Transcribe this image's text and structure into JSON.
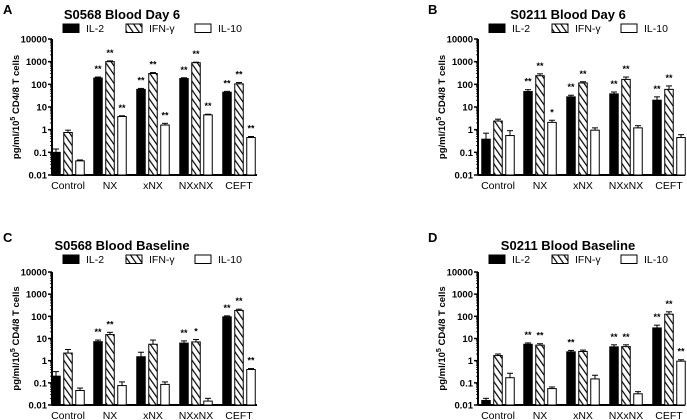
{
  "chart_data": [
    {
      "type": "bar",
      "panel_letter": "A",
      "title": "S0568 Blood Day 6",
      "ylabel": {
        "base": "pg/ml/10",
        "sup": "5",
        "rest": " CD4/8 T cells"
      },
      "yscale": "log",
      "ylim": [
        0.01,
        10000
      ],
      "yticks": [
        "0.01",
        "0.1",
        "1",
        "10",
        "100",
        "1000",
        "10000"
      ],
      "categories": [
        "Control",
        "NX",
        "xNX",
        "NXxNX",
        "CEFT"
      ],
      "series": [
        {
          "name": "IL-2",
          "fill": "solid",
          "values": [
            0.1,
            190,
            60,
            180,
            45
          ],
          "err_upper": [
            0.14,
            210,
            66,
            195,
            49
          ],
          "sig": [
            "",
            "**",
            "**",
            "**",
            "**"
          ]
        },
        {
          "name": "IFN-γ",
          "fill": "hatched",
          "values": [
            0.75,
            1000,
            300,
            900,
            105
          ],
          "err_upper": [
            0.95,
            1080,
            330,
            950,
            120
          ],
          "sig": [
            "",
            "**",
            "**",
            "**",
            "**"
          ]
        },
        {
          "name": "IL-10",
          "fill": "open",
          "values": [
            0.042,
            3.8,
            1.6,
            4.5,
            0.45
          ],
          "err_upper": [
            0.046,
            4.1,
            1.9,
            4.8,
            0.5
          ],
          "sig": [
            "",
            "**",
            "**",
            "**",
            "**"
          ]
        }
      ],
      "legend": "top"
    },
    {
      "type": "bar",
      "panel_letter": "B",
      "title": "S0211 Blood Day 6",
      "ylabel": {
        "base": "pg/ml/10",
        "sup": "5",
        "rest": " CD4/8 T cells"
      },
      "yscale": "log",
      "ylim": [
        0.01,
        10000
      ],
      "yticks": [
        "0.01",
        "0.1",
        "1",
        "10",
        "100",
        "1000",
        "10000"
      ],
      "categories": [
        "Control",
        "NX",
        "xNX",
        "NXxNX",
        "CEFT"
      ],
      "series": [
        {
          "name": "IL-2",
          "fill": "solid",
          "values": [
            0.38,
            48,
            28,
            38,
            20
          ],
          "err_upper": [
            0.7,
            58,
            33,
            46,
            28
          ],
          "sig": [
            "",
            "**",
            "**",
            "**",
            "**"
          ]
        },
        {
          "name": "IFN-γ",
          "fill": "hatched",
          "values": [
            2.4,
            240,
            115,
            165,
            60
          ],
          "err_upper": [
            2.9,
            290,
            130,
            210,
            85
          ],
          "sig": [
            "",
            "**",
            "**",
            "**",
            "**"
          ]
        },
        {
          "name": "IL-10",
          "fill": "open",
          "values": [
            0.55,
            2.1,
            0.95,
            1.2,
            0.45
          ],
          "err_upper": [
            0.9,
            2.6,
            1.2,
            1.5,
            0.6
          ],
          "sig": [
            "",
            "*",
            "",
            "",
            ""
          ]
        }
      ],
      "legend": "top"
    },
    {
      "type": "bar",
      "panel_letter": "C",
      "title": "S0568 Blood Baseline",
      "ylabel": {
        "base": "pg/ml/10",
        "sup": "5",
        "rest": " CD4/8 T cells"
      },
      "yscale": "log",
      "ylim": [
        0.01,
        10000
      ],
      "yticks": [
        "0.01",
        "0.1",
        "1",
        "10",
        "100",
        "1000",
        "10000"
      ],
      "categories": [
        "Control",
        "NX",
        "xNX",
        "NXxNX",
        "CEFT"
      ],
      "series": [
        {
          "name": "IL-2",
          "fill": "solid",
          "values": [
            0.2,
            7.2,
            1.5,
            6.2,
            95
          ],
          "err_upper": [
            0.32,
            8.5,
            2.4,
            7.8,
            105
          ],
          "sig": [
            "",
            "**",
            "",
            "**",
            "**"
          ]
        },
        {
          "name": "IFN-γ",
          "fill": "hatched",
          "values": [
            2.2,
            15,
            5.5,
            7,
            185
          ],
          "err_upper": [
            3.2,
            19,
            8.5,
            9,
            210
          ],
          "sig": [
            "",
            "**",
            "",
            "*",
            "**"
          ]
        },
        {
          "name": "IL-10",
          "fill": "open",
          "values": [
            0.045,
            0.075,
            0.085,
            0.015,
            0.4
          ],
          "err_upper": [
            0.058,
            0.11,
            0.11,
            0.02,
            0.44
          ],
          "sig": [
            "",
            "",
            "",
            "",
            "**"
          ]
        }
      ],
      "legend": "top"
    },
    {
      "type": "bar",
      "panel_letter": "D",
      "title": "S0211 Blood Baseline",
      "ylabel": {
        "base": "pg/ml/10",
        "sup": "5",
        "rest": " CD4/8 T cells"
      },
      "yscale": "log",
      "ylim": [
        0.01,
        10000
      ],
      "yticks": [
        "0.01",
        "0.1",
        "1",
        "10",
        "100",
        "1000",
        "10000"
      ],
      "categories": [
        "Control",
        "NX",
        "xNX",
        "NXxNX",
        "CEFT"
      ],
      "series": [
        {
          "name": "IL-2",
          "fill": "solid",
          "values": [
            0.016,
            5.5,
            2.5,
            4.2,
            30
          ],
          "err_upper": [
            0.02,
            6.3,
            2.9,
            5.2,
            40
          ],
          "sig": [
            "",
            "**",
            "**",
            "**",
            "**"
          ]
        },
        {
          "name": "IFN-γ",
          "fill": "hatched",
          "values": [
            1.7,
            5,
            2.6,
            4.3,
            125
          ],
          "err_upper": [
            2.0,
            5.8,
            3.0,
            5.2,
            160
          ],
          "sig": [
            "",
            "**",
            "",
            "**",
            "**"
          ]
        },
        {
          "name": "IL-10",
          "fill": "open",
          "values": [
            0.17,
            0.055,
            0.15,
            0.032,
            0.95
          ],
          "err_upper": [
            0.27,
            0.065,
            0.22,
            0.04,
            1.1
          ],
          "sig": [
            "",
            "",
            "",
            "",
            "**"
          ]
        }
      ],
      "legend": "top"
    }
  ]
}
